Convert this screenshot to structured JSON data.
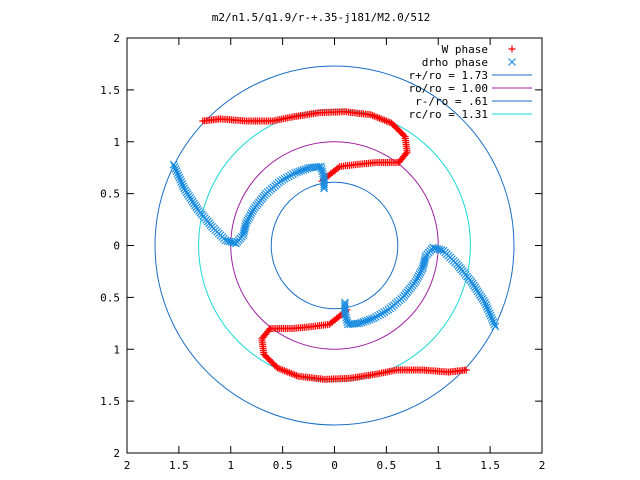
{
  "chart_data": {
    "type": "scatter",
    "title": "m2/n1.5/q1.9/r-+.35-j181/M2.0/512",
    "xlabel": "",
    "ylabel": "",
    "xlim": [
      -2,
      2
    ],
    "ylim": [
      -2,
      2
    ],
    "x_tick_labels": [
      "2",
      "1.5",
      "1",
      "0.5",
      "0",
      "0.5",
      "1",
      "1.5",
      "2"
    ],
    "y_tick_labels": [
      "2",
      "1.5",
      "1",
      "0.5",
      "0",
      "0.5",
      "1",
      "1.5",
      "2"
    ],
    "tick_values": [
      -2,
      -1.5,
      -1,
      -0.5,
      0,
      0.5,
      1,
      1.5,
      2
    ],
    "grid": false,
    "legend_position": "top-right",
    "circles": [
      {
        "name": "r+/ro = 1.73",
        "radius": 1.73,
        "color": "#1a6ec6"
      },
      {
        "name": "ro/ro = 1.00",
        "radius": 1.0,
        "color": "#a020a0"
      },
      {
        "name": "r-/ro = .61",
        "radius": 0.61,
        "color": "#1a6ec6"
      },
      {
        "name": "rc/ro = 1.31",
        "radius": 1.31,
        "color": "#1ad8d8"
      }
    ],
    "series": [
      {
        "name": "W phase",
        "marker": "+",
        "color": "#ff0000",
        "arcs": [
          [
            [
              -1.27,
              1.2
            ],
            [
              -1.1,
              1.22
            ],
            [
              -0.85,
              1.2
            ],
            [
              -0.6,
              1.2
            ],
            [
              -0.4,
              1.24
            ],
            [
              -0.15,
              1.28
            ],
            [
              0.1,
              1.29
            ],
            [
              0.35,
              1.26
            ],
            [
              0.55,
              1.18
            ],
            [
              0.68,
              1.05
            ],
            [
              0.7,
              0.9
            ],
            [
              0.62,
              0.8
            ],
            [
              0.4,
              0.8
            ],
            [
              0.2,
              0.78
            ],
            [
              0.05,
              0.76
            ],
            [
              -0.05,
              0.68
            ],
            [
              -0.12,
              0.62
            ]
          ],
          [
            [
              1.27,
              -1.2
            ],
            [
              1.1,
              -1.22
            ],
            [
              0.85,
              -1.2
            ],
            [
              0.6,
              -1.2
            ],
            [
              0.4,
              -1.24
            ],
            [
              0.15,
              -1.28
            ],
            [
              -0.1,
              -1.29
            ],
            [
              -0.35,
              -1.26
            ],
            [
              -0.55,
              -1.18
            ],
            [
              -0.68,
              -1.05
            ],
            [
              -0.7,
              -0.9
            ],
            [
              -0.62,
              -0.8
            ],
            [
              -0.4,
              -0.8
            ],
            [
              -0.2,
              -0.78
            ],
            [
              -0.05,
              -0.76
            ],
            [
              0.05,
              -0.68
            ],
            [
              0.12,
              -0.62
            ]
          ]
        ]
      },
      {
        "name": "drho phase",
        "marker": "x",
        "color": "#1a8ce0",
        "arcs": [
          [
            [
              -1.55,
              0.78
            ],
            [
              -1.45,
              0.55
            ],
            [
              -1.32,
              0.35
            ],
            [
              -1.18,
              0.18
            ],
            [
              -1.05,
              0.05
            ],
            [
              -0.95,
              0.02
            ],
            [
              -0.88,
              0.1
            ],
            [
              -0.85,
              0.22
            ],
            [
              -0.78,
              0.35
            ],
            [
              -0.66,
              0.5
            ],
            [
              -0.52,
              0.62
            ],
            [
              -0.38,
              0.7
            ],
            [
              -0.24,
              0.75
            ],
            [
              -0.13,
              0.76
            ],
            [
              -0.1,
              0.65
            ],
            [
              -0.1,
              0.55
            ]
          ],
          [
            [
              1.55,
              -0.78
            ],
            [
              1.45,
              -0.55
            ],
            [
              1.32,
              -0.35
            ],
            [
              1.18,
              -0.18
            ],
            [
              1.05,
              -0.05
            ],
            [
              0.95,
              -0.02
            ],
            [
              0.88,
              -0.1
            ],
            [
              0.85,
              -0.22
            ],
            [
              0.78,
              -0.35
            ],
            [
              0.66,
              -0.5
            ],
            [
              0.52,
              -0.62
            ],
            [
              0.38,
              -0.7
            ],
            [
              0.24,
              -0.75
            ],
            [
              0.13,
              -0.76
            ],
            [
              0.1,
              -0.65
            ],
            [
              0.1,
              -0.55
            ]
          ]
        ]
      }
    ]
  }
}
